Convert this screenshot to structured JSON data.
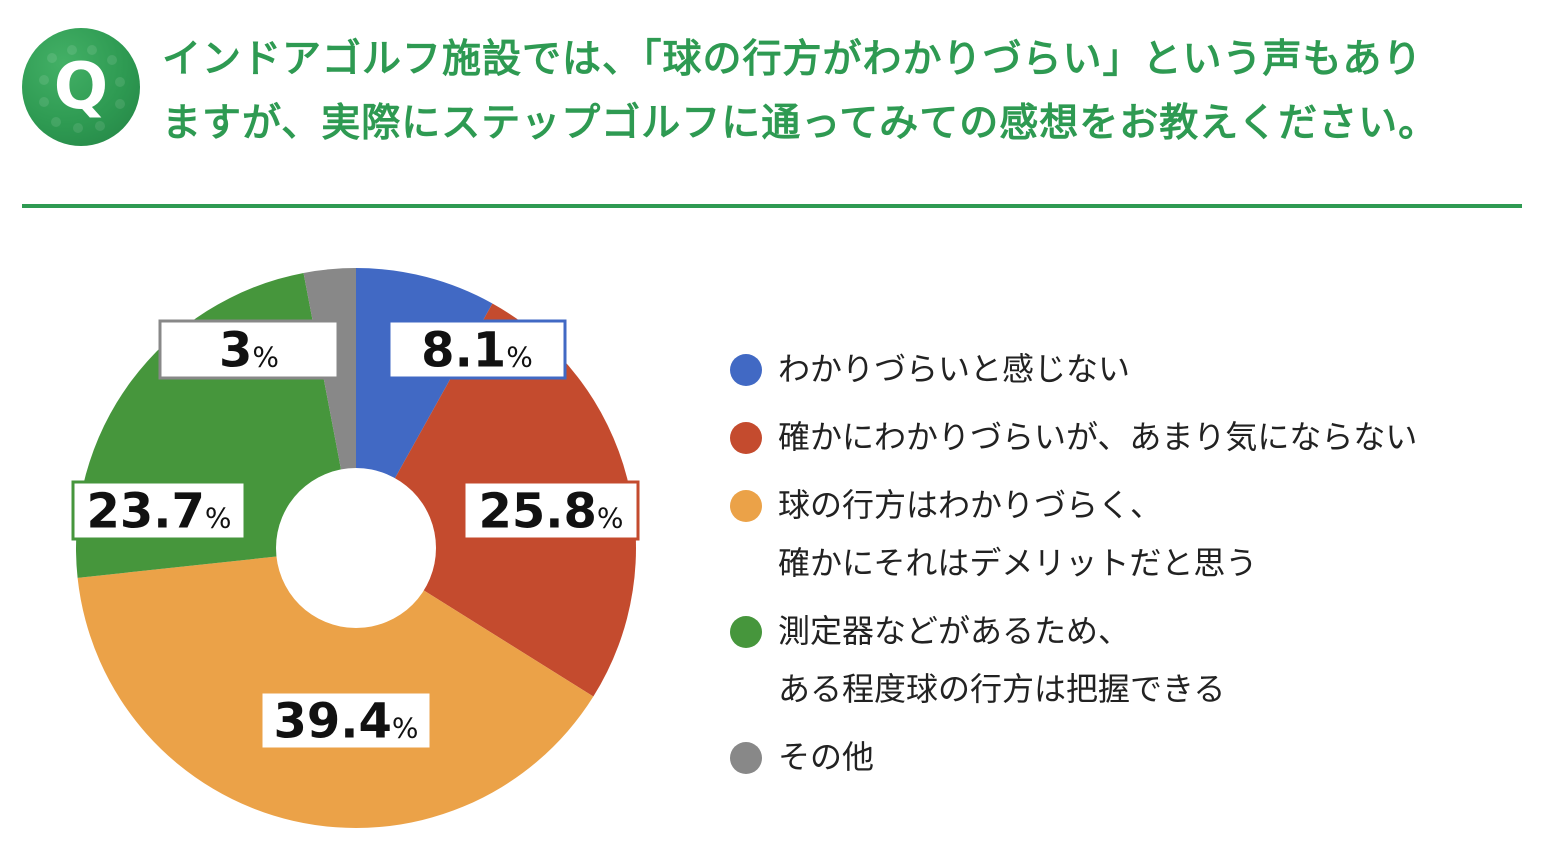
{
  "question": {
    "badge": "Q",
    "lines": [
      "インドアゴルフ施設では、「球の行方がわかりづらい」という声もあり",
      "ますが、実際にステップゴルフに通ってみての感想をお教えください。"
    ]
  },
  "colors": {
    "accent": "#2e9a52",
    "blue": "#4169c4",
    "red": "#c44b2e",
    "orange": "#eba248",
    "green": "#46963c",
    "gray": "#888888"
  },
  "chart_data": {
    "type": "pie",
    "style": "donut",
    "unit": "%",
    "slices": [
      {
        "label_lines": [
          "わかりづらいと感じない"
        ],
        "value": 8.1,
        "display": "8.1",
        "color": "#4169c4"
      },
      {
        "label_lines": [
          "確かにわかりづらいが、あまり気にならない"
        ],
        "value": 25.8,
        "display": "25.8",
        "color": "#c44b2e"
      },
      {
        "label_lines": [
          "球の行方はわかりづらく、",
          "確かにそれはデメリットだと思う"
        ],
        "value": 39.4,
        "display": "39.4",
        "color": "#eba248"
      },
      {
        "label_lines": [
          "測定器などがあるため、",
          "ある程度球の行方は把握できる"
        ],
        "value": 23.7,
        "display": "23.7",
        "color": "#46963c"
      },
      {
        "label_lines": [
          "その他"
        ],
        "value": 3,
        "display": "3",
        "color": "#888888"
      }
    ],
    "legend_position": "right"
  }
}
